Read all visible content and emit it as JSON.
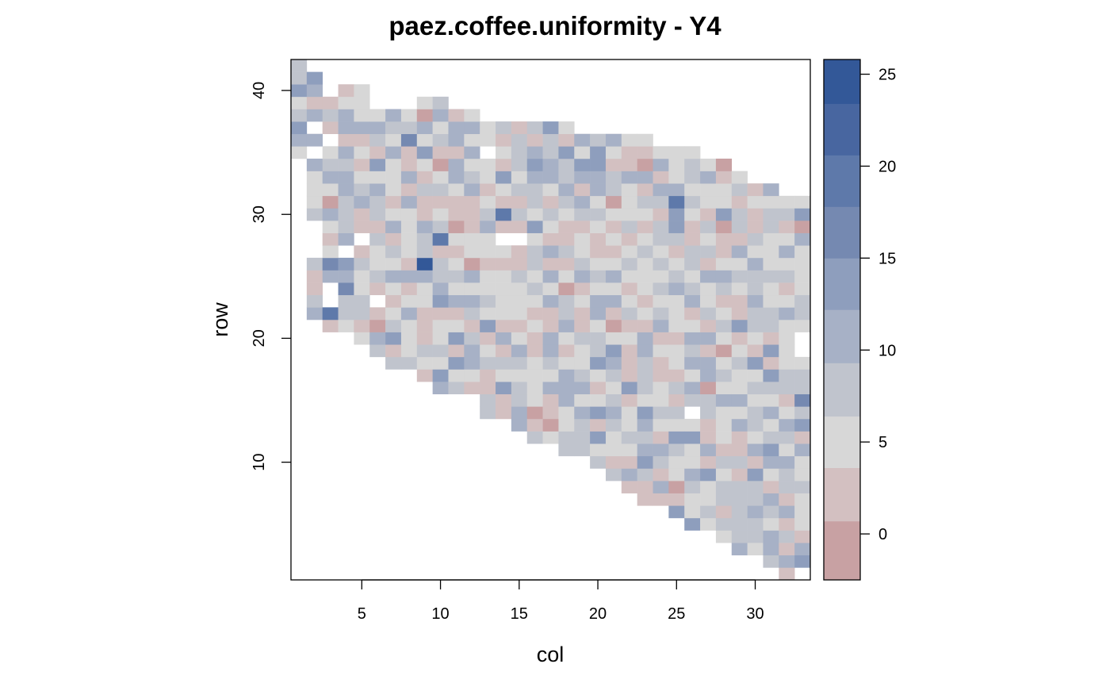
{
  "chart_data": {
    "type": "heatmap",
    "title": "paez.coffee.uniformity - Y4",
    "xlabel": "col",
    "ylabel": "row",
    "xlim": [
      0.5,
      33.5
    ],
    "ylim": [
      0.5,
      42.5
    ],
    "x_ticks": [
      5,
      10,
      15,
      20,
      25,
      30
    ],
    "y_ticks": [
      10,
      20,
      30,
      40
    ],
    "colorbar": {
      "range": [
        -2.5,
        25.8
      ],
      "ticks": [
        0,
        5,
        10,
        15,
        20,
        25
      ],
      "bins": [
        {
          "from": -2.5,
          "to": 0.7,
          "color": "#c8a1a3"
        },
        {
          "from": 0.7,
          "to": 3.6,
          "color": "#d3c0c1"
        },
        {
          "from": 3.6,
          "to": 6.4,
          "color": "#d7d7d7"
        },
        {
          "from": 6.4,
          "to": 9.3,
          "color": "#c0c4cd"
        },
        {
          "from": 9.3,
          "to": 12.2,
          "color": "#a7b1c6"
        },
        {
          "from": 12.2,
          "to": 15.0,
          "color": "#8e9ebd"
        },
        {
          "from": 15.0,
          "to": 17.8,
          "color": "#7589b1"
        },
        {
          "from": 17.8,
          "to": 20.6,
          "color": "#5e79aa"
        },
        {
          "from": 20.6,
          "to": 23.4,
          "color": "#4866a0"
        },
        {
          "from": 23.4,
          "to": 25.8,
          "color": "#335898"
        }
      ]
    },
    "field_boundary": [
      {
        "col": 1,
        "row_min": 35,
        "row_max": 42
      },
      {
        "col": 2,
        "row_min": 22,
        "row_max": 41
      },
      {
        "col": 3,
        "row_min": 21,
        "row_max": 39
      },
      {
        "col": 4,
        "row_min": 21,
        "row_max": 40
      },
      {
        "col": 5,
        "row_min": 20,
        "row_max": 40
      },
      {
        "col": 6,
        "row_min": 19,
        "row_max": 38
      },
      {
        "col": 7,
        "row_min": 18,
        "row_max": 38
      },
      {
        "col": 8,
        "row_min": 18,
        "row_max": 38
      },
      {
        "col": 9,
        "row_min": 17,
        "row_max": 39
      },
      {
        "col": 10,
        "row_min": 16,
        "row_max": 39
      },
      {
        "col": 11,
        "row_min": 16,
        "row_max": 38
      },
      {
        "col": 12,
        "row_min": 16,
        "row_max": 38
      },
      {
        "col": 13,
        "row_min": 14,
        "row_max": 37
      },
      {
        "col": 14,
        "row_min": 14,
        "row_max": 37
      },
      {
        "col": 15,
        "row_min": 13,
        "row_max": 37
      },
      {
        "col": 16,
        "row_min": 12,
        "row_max": 37
      },
      {
        "col": 17,
        "row_min": 12,
        "row_max": 37
      },
      {
        "col": 18,
        "row_min": 11,
        "row_max": 37
      },
      {
        "col": 19,
        "row_min": 11,
        "row_max": 36
      },
      {
        "col": 20,
        "row_min": 10,
        "row_max": 36
      },
      {
        "col": 21,
        "row_min": 9,
        "row_max": 36
      },
      {
        "col": 22,
        "row_min": 8,
        "row_max": 36
      },
      {
        "col": 23,
        "row_min": 7,
        "row_max": 36
      },
      {
        "col": 24,
        "row_min": 7,
        "row_max": 35
      },
      {
        "col": 25,
        "row_min": 6,
        "row_max": 35
      },
      {
        "col": 26,
        "row_min": 5,
        "row_max": 35
      },
      {
        "col": 27,
        "row_min": 5,
        "row_max": 34
      },
      {
        "col": 28,
        "row_min": 4,
        "row_max": 34
      },
      {
        "col": 29,
        "row_min": 3,
        "row_max": 33
      },
      {
        "col": 30,
        "row_min": 3,
        "row_max": 32
      },
      {
        "col": 31,
        "row_min": 2,
        "row_max": 32
      },
      {
        "col": 32,
        "row_min": 1,
        "row_max": 31
      },
      {
        "col": 33,
        "row_min": 2,
        "row_max": 31
      }
    ],
    "missing_cells": [
      [
        2,
        35
      ],
      [
        3,
        36
      ],
      [
        2,
        29
      ],
      [
        2,
        28
      ],
      [
        2,
        27
      ],
      [
        4,
        27
      ],
      [
        5,
        28
      ],
      [
        14,
        28
      ],
      [
        15,
        28
      ],
      [
        13,
        35
      ],
      [
        3,
        24
      ],
      [
        3,
        23
      ],
      [
        6,
        23
      ],
      [
        26,
        14
      ],
      [
        33,
        20
      ],
      [
        33,
        19
      ],
      [
        2,
        37
      ]
    ],
    "notable_cells": [
      {
        "col": 9,
        "row": 26,
        "value": 25
      },
      {
        "col": 10,
        "row": 28,
        "value": 20
      },
      {
        "col": 25,
        "row": 31,
        "value": 20
      },
      {
        "col": 14,
        "row": 30,
        "value": 18
      },
      {
        "col": 3,
        "row": 22,
        "value": 18
      },
      {
        "col": 4,
        "row": 24,
        "value": 17
      },
      {
        "col": 33,
        "row": 15,
        "value": 17
      },
      {
        "col": 2,
        "row": 41,
        "value": 14
      },
      {
        "col": 22,
        "row": 28,
        "value": 1
      },
      {
        "col": 28,
        "row": 28,
        "value": 1
      },
      {
        "col": 28,
        "row": 19,
        "value": 0
      },
      {
        "col": 21,
        "row": 21,
        "value": 0
      },
      {
        "col": 16,
        "row": 22,
        "value": 1
      },
      {
        "col": 25,
        "row": 15,
        "value": 1
      },
      {
        "col": 28,
        "row": 6,
        "value": 1
      },
      {
        "col": 28,
        "row": 34,
        "value": 0
      },
      {
        "col": 2,
        "row": 24,
        "value": 1
      },
      {
        "col": 32,
        "row": 1,
        "value": 1
      }
    ],
    "grid": false,
    "legend": "right colorbar"
  }
}
